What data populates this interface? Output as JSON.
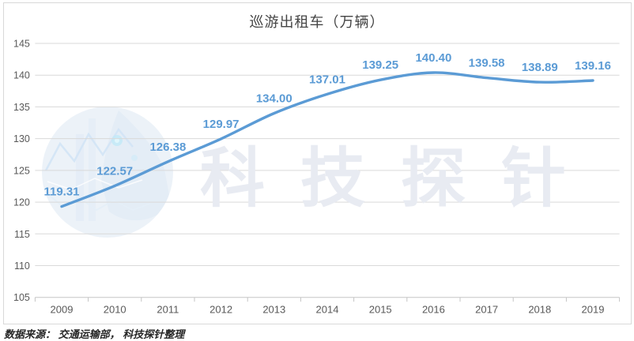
{
  "title": "巡游出租车（万辆）",
  "source_note": "数据来源： 交通运输部， 科技探针整理",
  "watermark": {
    "text": "科技探针"
  },
  "colors": {
    "line": "#5b9bd5",
    "data_label": "#5b9bd5",
    "grid": "#d9d9d9",
    "axis": "#c5c5c5",
    "axis_text": "#595959",
    "title_text": "#444444",
    "watermark_text": "#e8ebf2"
  },
  "chart_data": {
    "type": "line",
    "title": "巡游出租车（万辆）",
    "categories": [
      "2009",
      "2010",
      "2011",
      "2012",
      "2013",
      "2014",
      "2015",
      "2016",
      "2017",
      "2018",
      "2019"
    ],
    "values": [
      119.31,
      122.57,
      126.38,
      129.97,
      134.0,
      137.01,
      139.25,
      140.4,
      139.58,
      138.89,
      139.16
    ],
    "xlabel": "",
    "ylabel": "",
    "ylim": [
      105,
      145
    ],
    "ytick_step": 5,
    "yticks": [
      105,
      110,
      115,
      120,
      125,
      130,
      135,
      140,
      145
    ],
    "grid": true,
    "legend": "none",
    "data_labels_shown": true,
    "data_label_decimals": 2,
    "smooth": true
  }
}
